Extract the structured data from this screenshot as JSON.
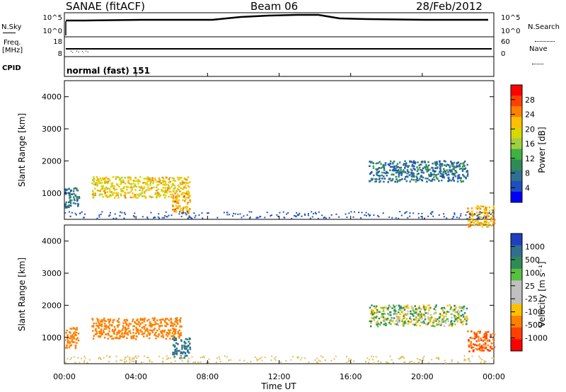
{
  "header": {
    "station": "SANAE (fitACF)",
    "beam": "Beam 06",
    "date": "28/Feb/2012"
  },
  "aux_panels": {
    "nsky_label": "N.Sky",
    "nsearch_label": "N.Search",
    "freq_label_top": "Freq.",
    "freq_label_unit": "[MHz]",
    "nave_label": "Nave",
    "cpid_label": "CPID",
    "cpid_value": "normal (fast) 151",
    "nsky_ticks": [
      "10^5",
      "10^0"
    ],
    "nsearch_ticks": [
      "10^5",
      "10^0"
    ],
    "freq_ticks": [
      "18",
      "8"
    ],
    "nave_ticks": [
      "60",
      "0"
    ]
  },
  "x_axis": {
    "label": "Time UT",
    "ticks": [
      "00:00",
      "04:00",
      "08:00",
      "12:00",
      "16:00",
      "20:00",
      "00:00"
    ]
  },
  "power_scale": {
    "label": "Power [dB]",
    "ticks": [
      "28",
      "24",
      "20",
      "16",
      "12",
      "8",
      "4"
    ],
    "colors": [
      "#ff0000",
      "#ff4000",
      "#ff8000",
      "#ffbf00",
      "#d8d800",
      "#a0d040",
      "#40b040",
      "#2e8b57",
      "#2f6f8f",
      "#1f4fbf",
      "#0000ff"
    ]
  },
  "velocity_scale": {
    "label": "Velocity [m s⁻¹]",
    "ticks": [
      "1000",
      "500",
      "100",
      "25",
      "-25",
      "-100",
      "-500",
      "-1000"
    ],
    "colors": [
      "#1f3fbf",
      "#2f6f8f",
      "#2e8b57",
      "#58c040",
      "#c0c0c0",
      "#c0c0c0",
      "#ffc000",
      "#ff8000",
      "#ff4000",
      "#ff0000"
    ]
  },
  "chart_data": [
    {
      "type": "heatmap",
      "title": "",
      "xlabel": "Time UT",
      "ylabel": "Slant Range [km]",
      "xlim": [
        "00:00",
        "24:00"
      ],
      "ylim": [
        180,
        4500
      ],
      "yticks": [
        1000,
        2000,
        3000,
        4000
      ],
      "colorbar": "Power [dB]",
      "regions": [
        {
          "t_start": 0.0,
          "t_end": 0.8,
          "r_center": 900,
          "value": 6
        },
        {
          "t_start": 1.5,
          "t_end": 7.0,
          "r_center": 1200,
          "value": 18
        },
        {
          "t_start": 6.0,
          "t_end": 7.0,
          "r_center": 700,
          "value": 20
        },
        {
          "t_start": 17.0,
          "t_end": 22.5,
          "r_center": 1700,
          "value": 6
        },
        {
          "t_start": 22.5,
          "t_end": 24.0,
          "r_center": 300,
          "value": 20
        }
      ]
    },
    {
      "type": "heatmap",
      "title": "",
      "xlabel": "Time UT",
      "ylabel": "Slant Range [km]",
      "xlim": [
        "00:00",
        "24:00"
      ],
      "ylim": [
        180,
        4500
      ],
      "yticks": [
        1000,
        2000,
        3000,
        4000
      ],
      "colorbar": "Velocity [m s⁻¹]",
      "regions": [
        {
          "t_start": 0.0,
          "t_end": 0.8,
          "r_center": 1000,
          "value": -300
        },
        {
          "t_start": 1.5,
          "t_end": 6.5,
          "r_center": 1300,
          "value": -200
        },
        {
          "t_start": 6.0,
          "t_end": 7.0,
          "r_center": 700,
          "value": 150
        },
        {
          "t_start": 17.0,
          "t_end": 22.5,
          "r_center": 1700,
          "value": 0
        },
        {
          "t_start": 22.5,
          "t_end": 24.0,
          "r_center": 900,
          "value": -500
        }
      ]
    }
  ]
}
